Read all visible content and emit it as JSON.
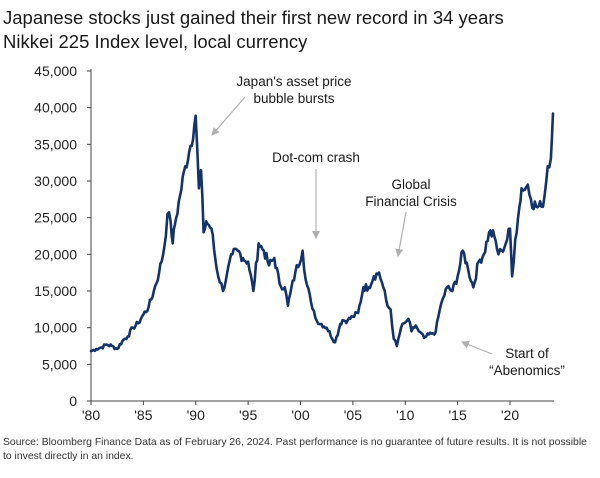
{
  "header": {
    "title": "Japanese stocks just gained their first new record in 34 years",
    "subtitle": "Nikkei 225 Index level, local currency"
  },
  "footer": {
    "source": "Source: Bloomberg Finance Data as of February 26, 2024. Past performance is no guarantee of future results. It is not possible to invest directly in an index."
  },
  "colors": {
    "line": "#14336b",
    "axis": "#444444",
    "arrow": "#b0b0b0"
  },
  "chart_data": {
    "type": "line",
    "title": "Japanese stocks just gained their first new record in 34 years",
    "subtitle": "Nikkei 225 Index level, local currency",
    "xlabel": "",
    "ylabel": "",
    "xlim": [
      1980,
      2024.2
    ],
    "ylim": [
      0,
      45000
    ],
    "grid": false,
    "x_ticks": [
      1980,
      1985,
      1990,
      1995,
      2000,
      2005,
      2010,
      2015,
      2020
    ],
    "x_tick_labels": [
      "'80",
      "'85",
      "'90",
      "'95",
      "'00",
      "'05",
      "'10",
      "'15",
      "'20"
    ],
    "y_ticks": [
      0,
      5000,
      10000,
      15000,
      20000,
      25000,
      30000,
      35000,
      40000,
      45000
    ],
    "y_tick_labels": [
      "0",
      "5,000",
      "10,000",
      "15,000",
      "20,000",
      "25,000",
      "30,000",
      "35,000",
      "40,000",
      "45,000"
    ],
    "series": [
      {
        "name": "",
        "x": [
          1980.0,
          1980.5,
          1981.0,
          1981.5,
          1982.0,
          1982.5,
          1983.0,
          1983.5,
          1984.0,
          1984.5,
          1985.0,
          1985.5,
          1986.0,
          1986.5,
          1987.0,
          1987.3,
          1987.6,
          1987.8,
          1988.0,
          1988.5,
          1989.0,
          1989.5,
          1989.99,
          1990.3,
          1990.5,
          1990.75,
          1991.0,
          1991.5,
          1992.0,
          1992.6,
          1993.0,
          1993.5,
          1994.0,
          1994.5,
          1995.0,
          1995.5,
          1996.0,
          1996.5,
          1997.0,
          1997.5,
          1998.0,
          1998.5,
          1998.8,
          1999.0,
          1999.5,
          2000.2,
          2000.5,
          2001.0,
          2001.7,
          2002.0,
          2002.5,
          2003.3,
          2003.8,
          2004.0,
          2004.5,
          2005.0,
          2005.5,
          2006.0,
          2006.5,
          2007.0,
          2007.5,
          2007.9,
          2008.3,
          2008.6,
          2008.9,
          2009.2,
          2009.6,
          2010.0,
          2010.3,
          2010.6,
          2011.0,
          2011.3,
          2011.8,
          2012.0,
          2012.5,
          2012.9,
          2013.3,
          2013.6,
          2014.0,
          2014.5,
          2015.0,
          2015.5,
          2016.0,
          2016.5,
          2017.0,
          2017.5,
          2018.0,
          2018.5,
          2018.9,
          2019.2,
          2019.6,
          2020.0,
          2020.2,
          2020.5,
          2020.9,
          2021.1,
          2021.4,
          2021.7,
          2022.0,
          2022.5,
          2023.0,
          2023.3,
          2023.6,
          2023.9,
          2024.1
        ],
        "values": [
          6800,
          7100,
          7300,
          7700,
          7500,
          7100,
          8200,
          8800,
          10000,
          10600,
          11800,
          12800,
          15000,
          17500,
          21000,
          25500,
          24500,
          21500,
          24000,
          28000,
          32000,
          34800,
          38900,
          29000,
          31500,
          23000,
          24500,
          23500,
          18000,
          15000,
          17500,
          20000,
          20500,
          19500,
          19000,
          15000,
          21500,
          20500,
          18500,
          19500,
          16000,
          15500,
          13000,
          14500,
          17500,
          20500,
          16500,
          13500,
          10500,
          10500,
          10000,
          8000,
          10500,
          11000,
          11000,
          11500,
          12000,
          15500,
          15500,
          17000,
          17500,
          15500,
          13000,
          12500,
          8500,
          7500,
          10000,
          10700,
          11200,
          9500,
          10300,
          9500,
          8600,
          8800,
          9200,
          9400,
          12500,
          14000,
          15500,
          15000,
          17000,
          20500,
          18000,
          15500,
          19000,
          20000,
          23000,
          22500,
          20000,
          20500,
          21500,
          23500,
          17000,
          22000,
          26500,
          29000,
          28800,
          29500,
          27500,
          26500,
          26500,
          28000,
          32000,
          33000,
          39200
        ]
      }
    ],
    "annotations": [
      {
        "text_lines": [
          "Japan's asset price",
          "bubble bursts"
        ],
        "x": 1990.7,
        "y": 36000
      },
      {
        "text_lines": [
          "Dot-com crash"
        ],
        "x": 2000.2,
        "y": 21000
      },
      {
        "text_lines": [
          "Global",
          "Financial Crisis"
        ],
        "x": 2007.5,
        "y": 18500
      },
      {
        "text_lines": [
          "Start of",
          "“Abenomics”"
        ],
        "x": 2012.6,
        "y": 8400
      }
    ]
  }
}
